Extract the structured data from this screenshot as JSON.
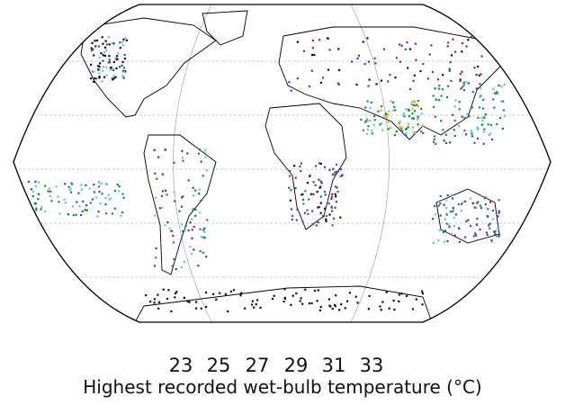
{
  "colorbar": {
    "title": "Highest recorded wet-bulb temperature (°C)",
    "ticks": [
      "23",
      "25",
      "27",
      "29",
      "31",
      "33"
    ],
    "bins": [
      {
        "range": "<23",
        "color": "#111111"
      },
      {
        "range": "23-25",
        "color": "#7b2a82"
      },
      {
        "range": "25-27",
        "color": "#3a4fa0"
      },
      {
        "range": "27-29",
        "color": "#66c6d8"
      },
      {
        "range": "29-31",
        "color": "#1a8a4a"
      },
      {
        "range": "31-33",
        "color": "#f5a623"
      },
      {
        "range": ">33",
        "color": "#e8262b"
      }
    ]
  },
  "map": {
    "projection": "Robinson",
    "graticule": true,
    "land_outline": "#000000",
    "ocean": "#ffffff"
  }
}
